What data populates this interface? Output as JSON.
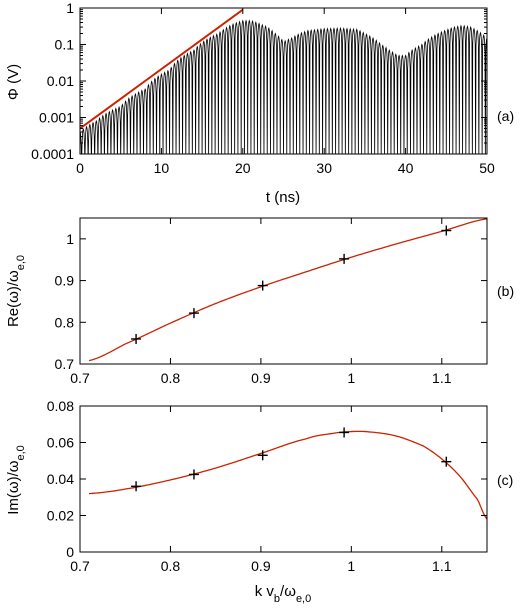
{
  "chart_data": [
    {
      "id": "a",
      "type": "line",
      "panel_label": "(a)",
      "xlabel": "t (ns)",
      "ylabel": "Φ (V)",
      "xlim": [
        0,
        50
      ],
      "ylim": [
        0.0001,
        1
      ],
      "yscale": "log",
      "xticks": [
        "0",
        "10",
        "20",
        "30",
        "40",
        "50"
      ],
      "yticks": [
        "0.0001",
        "0.001",
        "0.01",
        "0.1",
        "1"
      ],
      "fit_line": {
        "color": "#cc2200",
        "x": [
          0,
          20
        ],
        "y": [
          0.0005,
          0.9
        ]
      },
      "signal": {
        "color": "#000000",
        "oscillation_period_ns": 0.4,
        "envelope": {
          "t": [
            0,
            2,
            5,
            8,
            11,
            14,
            17,
            19,
            20,
            21,
            23,
            24,
            25,
            26,
            27,
            28,
            30,
            32,
            34,
            35,
            36,
            37,
            38,
            39,
            40,
            42,
            44,
            46,
            47,
            48,
            50
          ],
          "phi": [
            0.0004,
            0.0008,
            0.002,
            0.006,
            0.02,
            0.07,
            0.2,
            0.38,
            0.45,
            0.45,
            0.3,
            0.2,
            0.12,
            0.15,
            0.2,
            0.24,
            0.27,
            0.28,
            0.26,
            0.2,
            0.15,
            0.1,
            0.07,
            0.05,
            0.05,
            0.1,
            0.2,
            0.3,
            0.33,
            0.3,
            0.15
          ]
        }
      }
    },
    {
      "id": "b",
      "type": "scatter",
      "panel_label": "(b)",
      "xlabel": "",
      "ylabel": "Re(ω)/ωe,0",
      "xlim": [
        0.7,
        1.15
      ],
      "ylim": [
        0.7,
        1.05
      ],
      "xticks": [
        "0.7",
        "0.8",
        "0.9",
        "1",
        "1.1"
      ],
      "yticks": [
        "0.7",
        "0.8",
        "0.9",
        "1"
      ],
      "points": {
        "x": [
          0.762,
          0.826,
          0.902,
          0.992,
          1.105
        ],
        "y": [
          0.76,
          0.822,
          0.888,
          0.952,
          1.02
        ]
      },
      "curve": {
        "color": "#cc2200",
        "x": [
          0.71,
          0.75,
          0.8,
          0.85,
          0.9,
          0.95,
          1.0,
          1.05,
          1.1,
          1.15
        ],
        "y": [
          0.708,
          0.748,
          0.798,
          0.845,
          0.885,
          0.921,
          0.956,
          0.988,
          1.018,
          1.048
        ]
      }
    },
    {
      "id": "c",
      "type": "scatter",
      "panel_label": "(c)",
      "xlabel": "k vb/ωe,0",
      "ylabel": "Im(ω)/ωe,0",
      "xlim": [
        0.7,
        1.15
      ],
      "ylim": [
        0,
        0.08
      ],
      "xticks": [
        "0.7",
        "0.8",
        "0.9",
        "1",
        "1.1"
      ],
      "yticks": [
        "0",
        "0.02",
        "0.04",
        "0.06",
        "0.08"
      ],
      "points": {
        "x": [
          0.762,
          0.826,
          0.902,
          0.992,
          1.105
        ],
        "y": [
          0.036,
          0.0425,
          0.053,
          0.0655,
          0.0495
        ]
      },
      "curve": {
        "color": "#cc2200",
        "x": [
          0.71,
          0.75,
          0.8,
          0.85,
          0.9,
          0.95,
          0.98,
          1.0,
          1.02,
          1.05,
          1.08,
          1.1,
          1.12,
          1.14,
          1.15
        ],
        "y": [
          0.032,
          0.0345,
          0.0395,
          0.046,
          0.054,
          0.062,
          0.065,
          0.066,
          0.0658,
          0.0635,
          0.058,
          0.051,
          0.0415,
          0.0285,
          0.018
        ]
      }
    }
  ]
}
